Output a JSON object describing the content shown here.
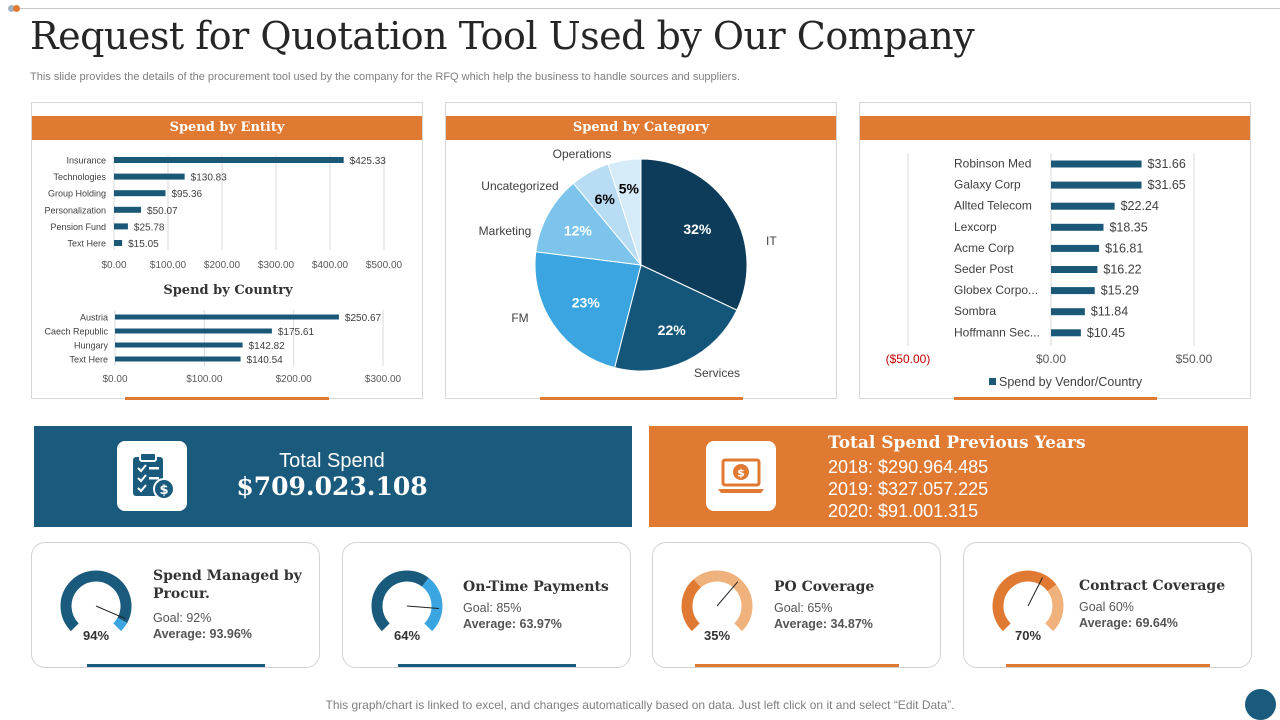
{
  "page": {
    "title": "Request for Quotation Tool Used by Our Company",
    "subtitle": "This slide provides the details of the procurement tool used by the company for the RFQ which help the business to handle sources and suppliers.",
    "footer_note": "This graph/chart is linked to excel, and changes automatically based on data.  Just left click on it and select “Edit Data”."
  },
  "colors": {
    "orange": "#e07a33",
    "navy": "#1a5a7c",
    "dark_navy": "#0c3c5a",
    "bar": "#1b5878",
    "light_blue": "#3aa5e0",
    "pale_blue": "#7cc4ec",
    "very_pale_blue": "#b7dcf3",
    "palest_blue": "#d5ebf8",
    "negative_red": "#c00000",
    "peach": "#f0b27d"
  },
  "panels": {
    "entity": {
      "title": "Spend by Entity"
    },
    "country": {
      "title": "Spend by Country"
    },
    "category": {
      "title": "Spend by Category"
    },
    "vendor": {
      "title": ""
    }
  },
  "chart_data": [
    {
      "id": "entity",
      "type": "bar",
      "orientation": "horizontal",
      "title": "Spend by Entity",
      "categories": [
        "Insurance",
        "Technologies",
        "Group Holding",
        "Personalization",
        "Pension Fund",
        "Text Here"
      ],
      "values": [
        425.33,
        130.83,
        95.36,
        50.07,
        25.78,
        15.05
      ],
      "value_labels": [
        "$425.33",
        "$130.83",
        "$95.36",
        "$50.07",
        "$25.78",
        "$15.05"
      ],
      "xlim": [
        0,
        500
      ],
      "ticks": [
        0,
        100,
        200,
        300,
        400,
        500
      ],
      "tick_labels": [
        "$0.00",
        "$100.00",
        "$200.00",
        "$300.00",
        "$400.00",
        "$500.00"
      ],
      "grid": true
    },
    {
      "id": "country",
      "type": "bar",
      "orientation": "horizontal",
      "title": "Spend by Country",
      "categories": [
        "Austria",
        "Caech Republic",
        "Hungary",
        "Text Here"
      ],
      "values": [
        250.67,
        175.61,
        142.82,
        140.54
      ],
      "value_labels": [
        "$250.67",
        "$175.61",
        "$142.82",
        "$140.54"
      ],
      "xlim": [
        0,
        300
      ],
      "ticks": [
        0,
        100,
        200,
        300
      ],
      "tick_labels": [
        "$0.00",
        "$100.00",
        "$200.00",
        "$300.00"
      ],
      "grid": true
    },
    {
      "id": "category",
      "type": "pie",
      "title": "Spend by Category",
      "categories": [
        "IT",
        "Services",
        "FM",
        "Marketing",
        "Uncategorized",
        "Operations"
      ],
      "values": [
        32,
        22,
        23,
        12,
        6,
        5
      ],
      "value_labels": [
        "32%",
        "22%",
        "23%",
        "12%",
        "6%",
        "5%"
      ],
      "colors": [
        "#0c3c5a",
        "#14567a",
        "#3aa5e0",
        "#7cc4ec",
        "#b7dcf3",
        "#d5ebf8"
      ]
    },
    {
      "id": "vendor",
      "type": "bar",
      "orientation": "horizontal",
      "title": "",
      "categories": [
        "Robinson Med",
        "Galaxy Corp",
        "Allted Telecom",
        "Lexcorp",
        "Acme Corp",
        "Seder Post",
        "Globex Corpo...",
        "Sombra",
        "Hoffmann Sec..."
      ],
      "values": [
        31.66,
        31.65,
        22.24,
        18.35,
        16.81,
        16.22,
        15.29,
        11.84,
        10.45
      ],
      "value_labels": [
        "$31.66",
        "$31.65",
        "$22.24",
        "$18.35",
        "$16.81",
        "$16.22",
        "$15.29",
        "$11.84",
        "$10.45"
      ],
      "xlim": [
        -50,
        50
      ],
      "ticks": [
        -50,
        0,
        50
      ],
      "tick_labels": [
        "($50.00)",
        "$0.00",
        "$50.00"
      ],
      "legend": "Spend by Vendor/Country",
      "legend_position": "bottom",
      "grid": true
    }
  ],
  "total_spend": {
    "label": "Total Spend",
    "value": "$709.023.108",
    "icon": "clipboard-dollar-icon"
  },
  "previous_years": {
    "title": "Total Spend Previous Years",
    "lines": [
      "2018: $290.964.485",
      "2019: $327.057.225",
      "2020: $91.001.315"
    ],
    "icon": "laptop-dollar-icon"
  },
  "kpis": [
    {
      "title": "Spend Managed by Procur.",
      "goal": "Goal: 92%",
      "average": "Average: 93.96%",
      "percent_label": "94%",
      "value": 93.96,
      "goal_value": 92,
      "theme": "blue"
    },
    {
      "title": "On-Time Payments",
      "goal": "Goal: 85%",
      "average": "Average: 63.97%",
      "percent_label": "64%",
      "value": 63.97,
      "goal_value": 85,
      "theme": "blue"
    },
    {
      "title": "PO Coverage",
      "goal": "Goal: 65%",
      "average": "Average: 34.87%",
      "percent_label": "35%",
      "value": 34.87,
      "goal_value": 65,
      "theme": "orange"
    },
    {
      "title": "Contract Coverage",
      "goal": "Goal 60%",
      "average": "Average: 69.64%",
      "percent_label": "70%",
      "value": 69.64,
      "goal_value": 60,
      "theme": "orange"
    }
  ]
}
